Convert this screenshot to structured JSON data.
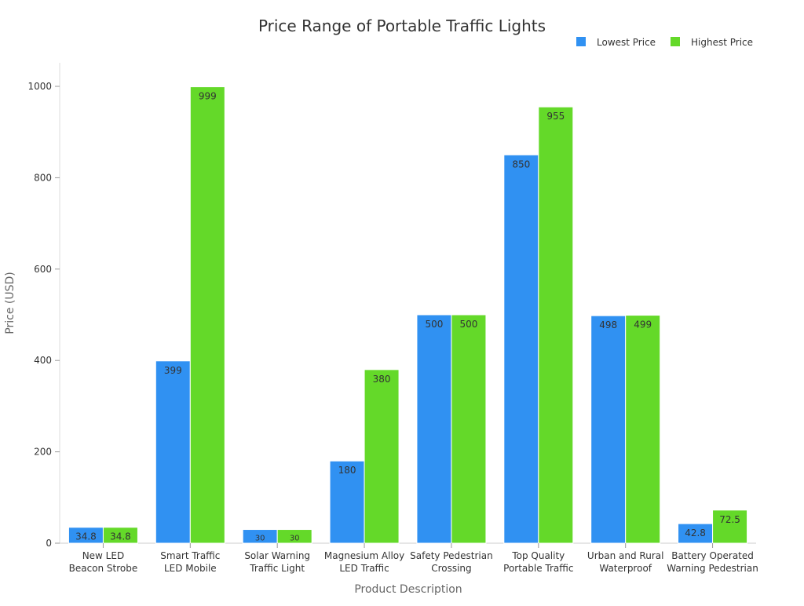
{
  "chart_data": {
    "type": "bar",
    "title": "Price Range of Portable Traffic Lights",
    "xlabel": "Product Description",
    "ylabel": "Price (USD)",
    "ylim": [
      0,
      1050
    ],
    "yticks": [
      0,
      200,
      400,
      600,
      800,
      1000
    ],
    "grid": false,
    "legend_position": "top-right",
    "categories": [
      [
        "New LED",
        "Beacon Strobe"
      ],
      [
        "Smart Traffic",
        "LED Mobile"
      ],
      [
        "Solar Warning",
        "Traffic Light"
      ],
      [
        "Magnesium Alloy",
        "LED Traffic"
      ],
      [
        "Safety Pedestrian",
        "Crossing"
      ],
      [
        "Top Quality",
        "Portable Traffic"
      ],
      [
        "Urban and Rural",
        "Waterproof"
      ],
      [
        "Battery Operated",
        "Warning Pedestrian"
      ]
    ],
    "series": [
      {
        "name": "Lowest Price",
        "color": "#3091f2",
        "values": [
          34.8,
          399,
          30,
          180,
          500,
          850,
          498,
          42.8
        ]
      },
      {
        "name": "Highest Price",
        "color": "#64d929",
        "values": [
          34.8,
          999,
          30,
          380,
          500,
          955,
          499,
          72.5
        ]
      }
    ]
  }
}
